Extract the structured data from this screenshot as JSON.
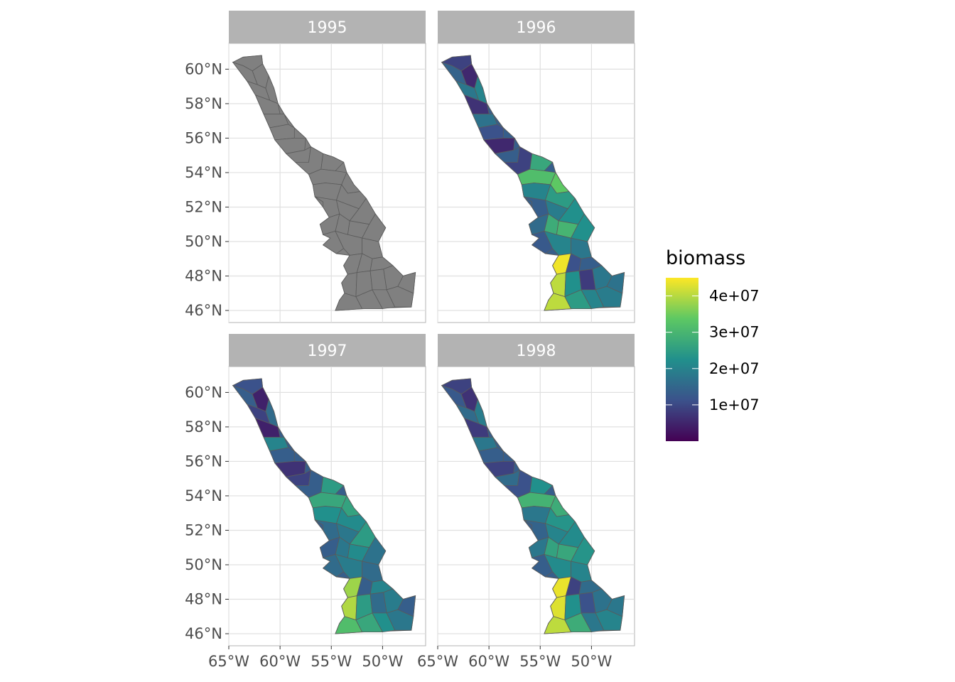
{
  "chart_data": {
    "type": "choropleth-map-facets",
    "facet_variable": "year",
    "panels": [
      {
        "label": "1995",
        "filled": false
      },
      {
        "label": "1996",
        "filled": true
      },
      {
        "label": "1997",
        "filled": true
      },
      {
        "label": "1998",
        "filled": true
      }
    ],
    "lat_ticks": [
      {
        "value": 60,
        "label": "60°N"
      },
      {
        "value": 58,
        "label": "58°N"
      },
      {
        "value": 56,
        "label": "56°N"
      },
      {
        "value": 54,
        "label": "54°N"
      },
      {
        "value": 52,
        "label": "52°N"
      },
      {
        "value": 50,
        "label": "50°N"
      },
      {
        "value": 48,
        "label": "48°N"
      },
      {
        "value": 46,
        "label": "46°N"
      }
    ],
    "lon_ticks": [
      {
        "value": -65,
        "label": "65°W"
      },
      {
        "value": -60,
        "label": "60°W"
      },
      {
        "value": -55,
        "label": "55°W"
      },
      {
        "value": -50,
        "label": "50°W"
      }
    ],
    "lon_range": [
      -65,
      -45.8
    ],
    "lat_range": [
      45.3,
      61.5
    ],
    "legend": {
      "title": "biomass",
      "min": 0,
      "max": 45000000,
      "ticks": [
        {
          "value": 40000000,
          "label": "4e+07"
        },
        {
          "value": 30000000,
          "label": "3e+07"
        },
        {
          "value": 20000000,
          "label": "2e+07"
        },
        {
          "value": 10000000,
          "label": "1e+07"
        }
      ],
      "palette": [
        "#440154",
        "#3b528b",
        "#21908c",
        "#5dc863",
        "#fde725"
      ],
      "placement": "right"
    },
    "na_fill": "#808080",
    "region_border": "#5a5a5a"
  }
}
